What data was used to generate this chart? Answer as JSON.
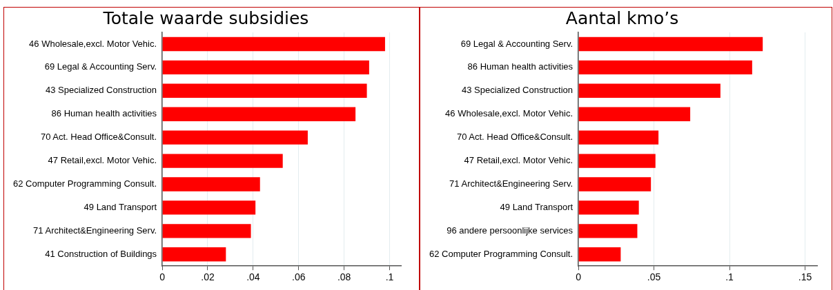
{
  "chart_data": [
    {
      "type": "bar",
      "orientation": "horizontal",
      "title": "Totale waarde subsidies",
      "categories": [
        "46 Wholesale,excl. Motor Vehic.",
        "69 Legal & Accounting Serv.",
        "43 Specialized Construction",
        "86 Human health activities",
        "70 Act. Head Office&Consult.",
        "47 Retail,excl. Motor Vehic.",
        "62 Computer Programming Consult.",
        "49 Land Transport",
        "71 Architect&Engineering Serv.",
        "41 Construction of Buildings"
      ],
      "values": [
        0.098,
        0.091,
        0.09,
        0.085,
        0.064,
        0.053,
        0.043,
        0.041,
        0.039,
        0.028
      ],
      "color": "#ff0000",
      "xlim": [
        0,
        0.105
      ],
      "xticks": [
        {
          "value": 0,
          "label": "0"
        },
        {
          "value": 0.02,
          "label": ".02"
        },
        {
          "value": 0.04,
          "label": ".04"
        },
        {
          "value": 0.06,
          "label": ".06"
        },
        {
          "value": 0.08,
          "label": ".08"
        },
        {
          "value": 0.1,
          "label": ".1"
        }
      ],
      "grid": "x",
      "legend": false
    },
    {
      "type": "bar",
      "orientation": "horizontal",
      "title": "Aantal kmo’s",
      "categories": [
        "69 Legal & Accounting Serv.",
        "86 Human health activities",
        "43 Specialized Construction",
        "46 Wholesale,excl. Motor Vehic.",
        "70 Act. Head Office&Consult.",
        "47 Retail,excl. Motor Vehic.",
        "71 Architect&Engineering Serv.",
        "49 Land Transport",
        "96 andere persoonlijke services",
        "62 Computer Programming Consult."
      ],
      "values": [
        0.122,
        0.115,
        0.094,
        0.074,
        0.053,
        0.051,
        0.048,
        0.04,
        0.039,
        0.028
      ],
      "color": "#ff0000",
      "xlim": [
        0,
        0.158
      ],
      "xticks": [
        {
          "value": 0,
          "label": "0"
        },
        {
          "value": 0.05,
          "label": ".05"
        },
        {
          "value": 0.1,
          "label": ".1"
        },
        {
          "value": 0.15,
          "label": ".15"
        }
      ],
      "grid": "x",
      "legend": false
    }
  ]
}
